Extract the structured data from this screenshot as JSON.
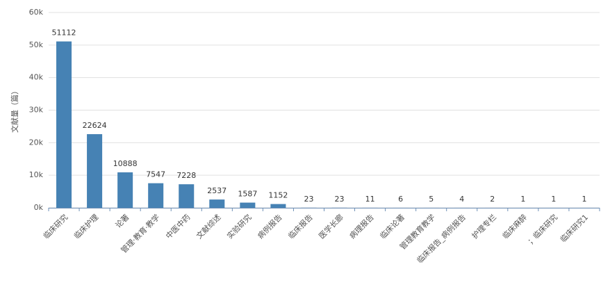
{
  "chart_data": {
    "type": "bar",
    "y_label": "文献量（篇）",
    "categories": [
      "临床研究",
      "临床护理",
      "论著",
      "管理·教育·教学",
      "中医中药",
      "文献综述",
      "实验研究",
      "病例报告",
      "临床报告",
      "医学长廊",
      "病理报告",
      "临床论著",
      "管理教育教学",
      "临床报告_病例报告",
      "护理专栏",
      "临床麻醉",
      "；临床研究",
      "临床研究1"
    ],
    "values": [
      51112,
      22624,
      10888,
      7547,
      7228,
      2537,
      1587,
      1152,
      23,
      23,
      11,
      6,
      5,
      4,
      2,
      1,
      1,
      1
    ],
    "color": "#4682b4",
    "ylim": [
      0,
      60000
    ],
    "yticks": [
      {
        "value": 0,
        "label": "0k"
      },
      {
        "value": 10000,
        "label": "10k"
      },
      {
        "value": 20000,
        "label": "20k"
      },
      {
        "value": 30000,
        "label": "30k"
      },
      {
        "value": 40000,
        "label": "40k"
      },
      {
        "value": 50000,
        "label": "50k"
      },
      {
        "value": 60000,
        "label": "60k"
      }
    ],
    "grid": true
  }
}
